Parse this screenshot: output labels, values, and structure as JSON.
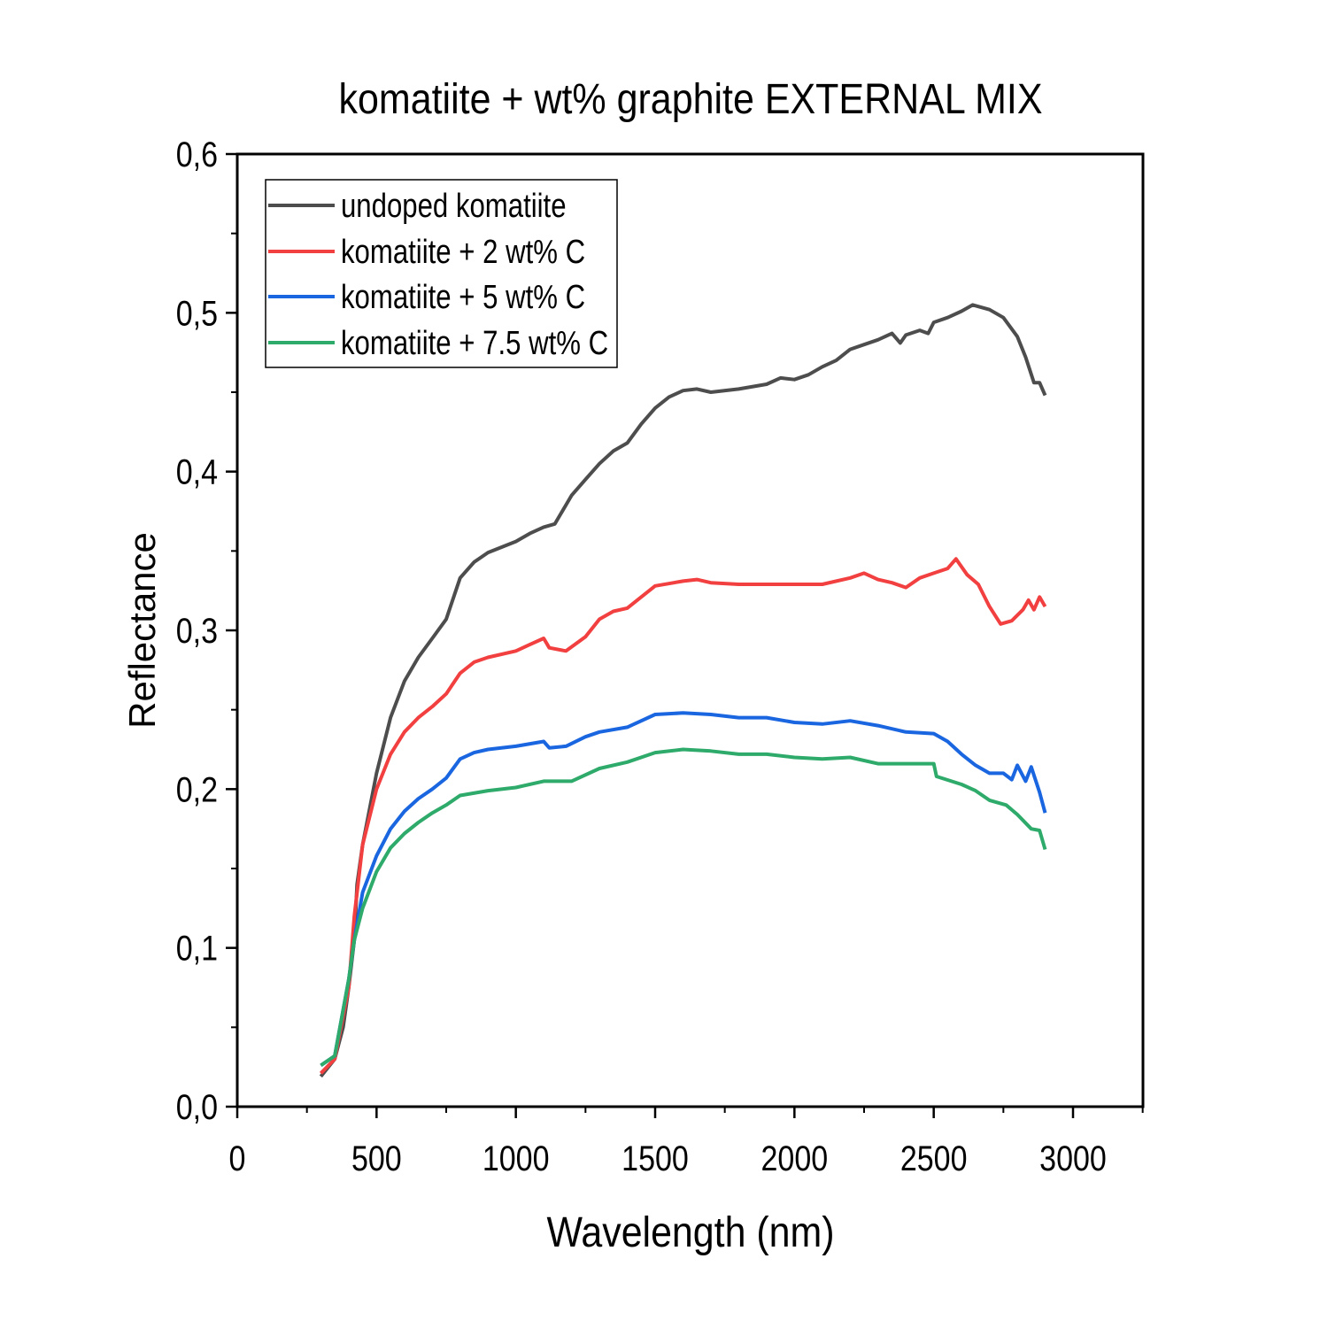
{
  "chart_data": {
    "type": "line",
    "title": "komatiite + wt% graphite EXTERNAL MIX",
    "xlabel": "Wavelength (nm)",
    "ylabel": "Reflectance",
    "xlim": [
      0,
      3250
    ],
    "ylim": [
      0,
      0.6
    ],
    "xticks": [
      0,
      500,
      1000,
      1500,
      2000,
      2500,
      3000
    ],
    "xtick_labels": [
      "0",
      "500",
      "1000",
      "1500",
      "2000",
      "2500",
      "3000"
    ],
    "yticks": [
      0,
      0.1,
      0.2,
      0.3,
      0.4,
      0.5,
      0.6
    ],
    "ytick_labels": [
      "0,0",
      "0,1",
      "0,2",
      "0,3",
      "0,4",
      "0,5",
      "0,6"
    ],
    "grid": false,
    "legend_position": "top-left",
    "series": [
      {
        "name": "undoped komatiite",
        "color": "#4d4d4d",
        "x": [
          300,
          350,
          380,
          400,
          420,
          430,
          450,
          500,
          550,
          600,
          650,
          700,
          750,
          800,
          850,
          900,
          1000,
          1050,
          1100,
          1140,
          1200,
          1250,
          1300,
          1350,
          1400,
          1450,
          1500,
          1550,
          1600,
          1650,
          1700,
          1800,
          1900,
          1950,
          2000,
          2050,
          2100,
          2150,
          2200,
          2250,
          2300,
          2350,
          2380,
          2400,
          2450,
          2480,
          2500,
          2550,
          2600,
          2640,
          2700,
          2750,
          2800,
          2830,
          2860,
          2880,
          2900
        ],
        "y": [
          0.019,
          0.03,
          0.05,
          0.075,
          0.105,
          0.14,
          0.165,
          0.21,
          0.245,
          0.268,
          0.283,
          0.295,
          0.307,
          0.333,
          0.343,
          0.349,
          0.356,
          0.361,
          0.365,
          0.367,
          0.385,
          0.395,
          0.405,
          0.413,
          0.418,
          0.43,
          0.44,
          0.447,
          0.451,
          0.452,
          0.45,
          0.452,
          0.455,
          0.459,
          0.458,
          0.461,
          0.466,
          0.47,
          0.477,
          0.48,
          0.483,
          0.487,
          0.481,
          0.486,
          0.489,
          0.487,
          0.494,
          0.497,
          0.501,
          0.505,
          0.502,
          0.497,
          0.485,
          0.472,
          0.456,
          0.456,
          0.448
        ]
      },
      {
        "name": "komatiite + 2 wt% C",
        "color": "#f23f3f",
        "x": [
          300,
          350,
          400,
          420,
          450,
          500,
          550,
          600,
          650,
          700,
          750,
          800,
          850,
          900,
          1000,
          1050,
          1100,
          1120,
          1180,
          1250,
          1300,
          1350,
          1400,
          1450,
          1500,
          1600,
          1650,
          1700,
          1800,
          1900,
          2000,
          2100,
          2200,
          2250,
          2300,
          2350,
          2400,
          2450,
          2500,
          2550,
          2580,
          2620,
          2660,
          2700,
          2740,
          2780,
          2820,
          2840,
          2860,
          2880,
          2900
        ],
        "y": [
          0.021,
          0.03,
          0.075,
          0.12,
          0.165,
          0.2,
          0.222,
          0.236,
          0.245,
          0.252,
          0.26,
          0.273,
          0.28,
          0.283,
          0.287,
          0.291,
          0.295,
          0.289,
          0.287,
          0.296,
          0.307,
          0.312,
          0.314,
          0.321,
          0.328,
          0.331,
          0.332,
          0.33,
          0.329,
          0.329,
          0.329,
          0.329,
          0.333,
          0.336,
          0.332,
          0.33,
          0.327,
          0.333,
          0.336,
          0.339,
          0.345,
          0.335,
          0.329,
          0.315,
          0.304,
          0.306,
          0.313,
          0.319,
          0.313,
          0.321,
          0.315
        ]
      },
      {
        "name": "komatiite + 5 wt% C",
        "color": "#1a66e0",
        "x": [
          300,
          350,
          400,
          420,
          450,
          500,
          550,
          600,
          650,
          700,
          750,
          800,
          850,
          900,
          1000,
          1100,
          1120,
          1180,
          1250,
          1300,
          1400,
          1500,
          1600,
          1700,
          1800,
          1900,
          2000,
          2100,
          2200,
          2300,
          2400,
          2500,
          2550,
          2600,
          2650,
          2700,
          2750,
          2780,
          2800,
          2830,
          2850,
          2880,
          2900
        ],
        "y": [
          0.026,
          0.032,
          0.08,
          0.105,
          0.135,
          0.158,
          0.175,
          0.186,
          0.194,
          0.2,
          0.207,
          0.219,
          0.223,
          0.225,
          0.227,
          0.23,
          0.226,
          0.227,
          0.233,
          0.236,
          0.239,
          0.247,
          0.248,
          0.247,
          0.245,
          0.245,
          0.242,
          0.241,
          0.243,
          0.24,
          0.236,
          0.235,
          0.23,
          0.222,
          0.215,
          0.21,
          0.21,
          0.206,
          0.215,
          0.205,
          0.214,
          0.198,
          0.185
        ]
      },
      {
        "name": "komatiite + 7.5 wt% C",
        "color": "#2eaa6a",
        "x": [
          300,
          350,
          400,
          420,
          450,
          500,
          550,
          600,
          650,
          700,
          750,
          800,
          900,
          1000,
          1100,
          1200,
          1300,
          1400,
          1500,
          1600,
          1700,
          1800,
          1900,
          2000,
          2100,
          2200,
          2300,
          2400,
          2500,
          2510,
          2600,
          2650,
          2700,
          2760,
          2800,
          2850,
          2880,
          2900
        ],
        "y": [
          0.026,
          0.032,
          0.08,
          0.105,
          0.125,
          0.148,
          0.163,
          0.172,
          0.179,
          0.185,
          0.19,
          0.196,
          0.199,
          0.201,
          0.205,
          0.205,
          0.213,
          0.217,
          0.223,
          0.225,
          0.224,
          0.222,
          0.222,
          0.22,
          0.219,
          0.22,
          0.216,
          0.216,
          0.216,
          0.208,
          0.203,
          0.199,
          0.193,
          0.19,
          0.184,
          0.175,
          0.174,
          0.162
        ]
      }
    ]
  }
}
